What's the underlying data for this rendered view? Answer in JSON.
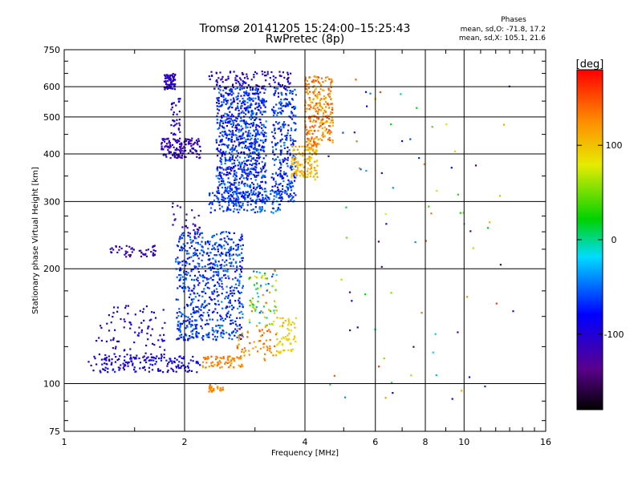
{
  "chart_data": {
    "type": "scatter",
    "title": "Tromsø 20141205 15:24:00–15:25:43",
    "subtitle": "RwPretec (8p)",
    "xlabel": "Frequency [MHz]",
    "ylabel": "Stationary phase Virtual Height [km]",
    "x_scale": "log",
    "y_scale": "log",
    "xlim": [
      1,
      16
    ],
    "ylim": [
      75,
      750
    ],
    "x_ticks": [
      1,
      2,
      4,
      6,
      8,
      10,
      16
    ],
    "x_tick_labels": [
      "1",
      "2",
      "4",
      "6",
      "8",
      "10",
      "16"
    ],
    "y_ticks": [
      75,
      100,
      200,
      300,
      400,
      500,
      600,
      750
    ],
    "y_tick_labels": [
      "75",
      "100",
      "200",
      "300",
      "400",
      "500",
      "600",
      "750"
    ],
    "grid": true,
    "stats": {
      "heading": "Phases",
      "line_o": "mean, sd,O: -71.8, 17.2",
      "line_x": "mean, sd,X: 105.1, 21.6"
    },
    "colorbar": {
      "label": "[deg]",
      "range": [
        -180,
        180
      ],
      "ticks": [
        100,
        0,
        -100
      ],
      "tick_labels": [
        "100",
        "0",
        "-100"
      ],
      "colormap": "rainbow-black-to-red"
    },
    "clusters": [
      {
        "f": [
          1.78,
          1.9
        ],
        "h": [
          590,
          650
        ],
        "phase": [
          -120,
          -90
        ],
        "n": 80
      },
      {
        "f": [
          2.3,
          3.7
        ],
        "h": [
          590,
          660
        ],
        "phase": [
          -120,
          -80
        ],
        "n": 120
      },
      {
        "f": [
          1.75,
          2.2
        ],
        "h": [
          390,
          440
        ],
        "phase": [
          -130,
          -90
        ],
        "n": 140
      },
      {
        "f": [
          1.85,
          1.95
        ],
        "h": [
          430,
          560
        ],
        "phase": [
          -120,
          -90
        ],
        "n": 40
      },
      {
        "f": [
          2.4,
          3.2
        ],
        "h": [
          300,
          600
        ],
        "phase": [
          -100,
          -40
        ],
        "n": 900
      },
      {
        "f": [
          3.3,
          3.8
        ],
        "h": [
          300,
          600
        ],
        "phase": [
          -90,
          -40
        ],
        "n": 300
      },
      {
        "f": [
          2.3,
          3.5
        ],
        "h": [
          280,
          320
        ],
        "phase": [
          -80,
          -40
        ],
        "n": 160
      },
      {
        "f": [
          3.7,
          4.3
        ],
        "h": [
          340,
          420
        ],
        "phase": [
          90,
          130
        ],
        "n": 140
      },
      {
        "f": [
          4.0,
          4.7
        ],
        "h": [
          420,
          640
        ],
        "phase": [
          100,
          160
        ],
        "n": 260
      },
      {
        "f": [
          1.85,
          2.2
        ],
        "h": [
          240,
          300
        ],
        "phase": [
          -130,
          -100
        ],
        "n": 30
      },
      {
        "f": [
          1.9,
          2.8
        ],
        "h": [
          130,
          250
        ],
        "phase": [
          -90,
          -40
        ],
        "n": 700
      },
      {
        "f": [
          1.3,
          1.7
        ],
        "h": [
          215,
          230
        ],
        "phase": [
          -130,
          -100
        ],
        "n": 50
      },
      {
        "f": [
          1.15,
          2.2
        ],
        "h": [
          107,
          118
        ],
        "phase": [
          -110,
          -70
        ],
        "n": 160
      },
      {
        "f": [
          1.2,
          1.8
        ],
        "h": [
          115,
          160
        ],
        "phase": [
          -120,
          -80
        ],
        "n": 100
      },
      {
        "f": [
          2.2,
          2.8
        ],
        "h": [
          110,
          118
        ],
        "phase": [
          110,
          150
        ],
        "n": 70
      },
      {
        "f": [
          2.7,
          3.4
        ],
        "h": [
          115,
          140
        ],
        "phase": [
          110,
          150
        ],
        "n": 60
      },
      {
        "f": [
          2.9,
          3.4
        ],
        "h": [
          140,
          200
        ],
        "phase": [
          -60,
          140
        ],
        "n": 80
      },
      {
        "f": [
          3.4,
          3.8
        ],
        "h": [
          120,
          150
        ],
        "phase": [
          80,
          110
        ],
        "n": 60
      },
      {
        "f": [
          2.3,
          2.5
        ],
        "h": [
          95,
          100
        ],
        "phase": [
          110,
          140
        ],
        "n": 30
      },
      {
        "f": [
          4.5,
          13.5
        ],
        "h": [
          85,
          650
        ],
        "phase": [
          -150,
          160
        ],
        "n": 80
      }
    ]
  }
}
